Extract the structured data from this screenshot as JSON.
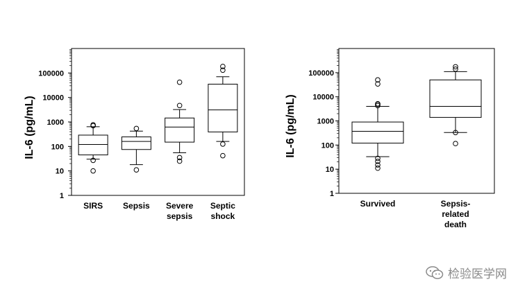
{
  "chart_data": [
    {
      "type": "box",
      "ylabel": "IL-6 (pg/mL)",
      "yscale": "log",
      "ylim": [
        1,
        1000000
      ],
      "yticks": [
        1,
        10,
        100,
        1000,
        10000,
        100000
      ],
      "categories": [
        "SIRS",
        "Sepsis",
        "Severe\nsepsis",
        "Septic\nshock"
      ],
      "boxes": [
        {
          "q1": 45,
          "median": 120,
          "q3": 290,
          "whisker_low": 30,
          "whisker_high": 640,
          "outliers": [
            10,
            27,
            700,
            760
          ]
        },
        {
          "q1": 75,
          "median": 160,
          "q3": 245,
          "whisker_low": 18,
          "whisker_high": 420,
          "outliers": [
            11,
            540
          ]
        },
        {
          "q1": 150,
          "median": 620,
          "q3": 1450,
          "whisker_low": 55,
          "whisker_high": 3200,
          "outliers": [
            25,
            35,
            4700,
            42000
          ]
        },
        {
          "q1": 390,
          "median": 3100,
          "q3": 35000,
          "whisker_low": 160,
          "whisker_high": 70000,
          "outliers": [
            42,
            125,
            130000,
            185000
          ]
        }
      ]
    },
    {
      "type": "box",
      "ylabel": "IL-6 (pg/mL)",
      "yscale": "log",
      "ylim": [
        1,
        1000000
      ],
      "yticks": [
        1,
        10,
        100,
        1000,
        10000,
        100000
      ],
      "categories": [
        "Survived",
        "Sepsis-\nrelated\ndeath"
      ],
      "boxes": [
        {
          "q1": 120,
          "median": 370,
          "q3": 900,
          "whisker_low": 33,
          "whisker_high": 4000,
          "outliers": [
            11,
            15,
            21,
            28,
            4300,
            4900,
            5100,
            34000,
            50000
          ]
        },
        {
          "q1": 1400,
          "median": 4000,
          "q3": 50000,
          "whisker_low": 330,
          "whisker_high": 110000,
          "outliers": [
            115,
            330,
            140000,
            175000
          ]
        }
      ]
    }
  ],
  "watermark": {
    "text": "检验医学网",
    "icon": "wechat-icon"
  }
}
